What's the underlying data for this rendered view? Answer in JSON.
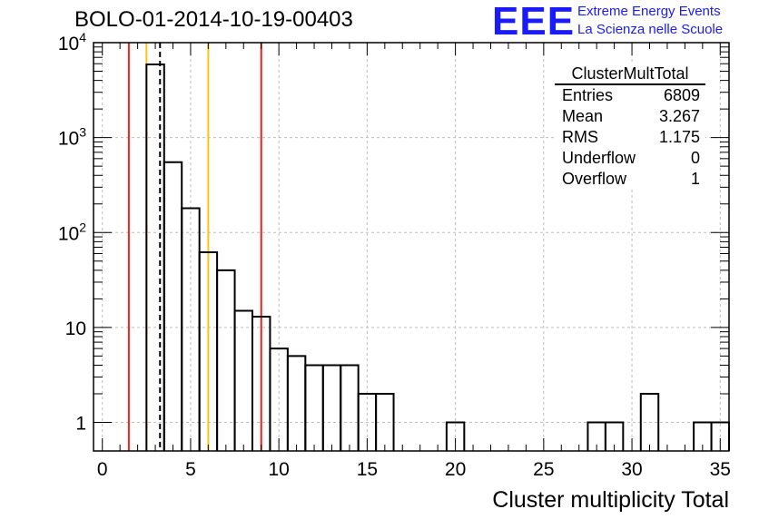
{
  "title": "BOLO-01-2014-10-19-00403",
  "logo": {
    "mark": "EEE",
    "line1": "Extreme Energy Events",
    "line2": "La Scienza nelle Scuole"
  },
  "stats": {
    "title": "ClusterMultTotal",
    "rows": [
      {
        "label": "Entries",
        "value": "6809"
      },
      {
        "label": "Mean",
        "value": "3.267"
      },
      {
        "label": "RMS",
        "value": "1.175"
      },
      {
        "label": "Underflow",
        "value": "0"
      },
      {
        "label": "Overflow",
        "value": "1"
      }
    ]
  },
  "colors": {
    "histogram": "#000000",
    "red_line": "#e8231b",
    "yellow_line": "#f5c518",
    "mean_line": "#000000",
    "grid": "#bdbdbd",
    "logo": "#1a1aff"
  },
  "chart_data": {
    "type": "bar",
    "histogram_style": "step",
    "title": "BOLO-01-2014-10-19-00403",
    "xlabel": "Cluster multiplicity Total",
    "ylabel": "",
    "xlim": [
      -0.5,
      35.5
    ],
    "ylim": [
      0.5,
      10000
    ],
    "yscale": "log",
    "grid": true,
    "bin_edges_start": -0.5,
    "bin_width": 1,
    "counts": [
      0,
      0,
      0,
      5900,
      550,
      180,
      62,
      40,
      15,
      13,
      6,
      5,
      4,
      4,
      4,
      2,
      2,
      0,
      0,
      0,
      1,
      0,
      0,
      0,
      0,
      0,
      0,
      0,
      1,
      1,
      0,
      2,
      0,
      0,
      1,
      1
    ],
    "x_ticks": [
      0,
      5,
      10,
      15,
      20,
      25,
      30,
      35
    ],
    "x_tick_labels": [
      "0",
      "5",
      "10",
      "15",
      "20",
      "25",
      "30",
      "35"
    ],
    "y_ticks": [
      1,
      10,
      100,
      1000,
      10000
    ],
    "y_tick_labels": [
      "1",
      "10",
      "10^2",
      "10^3",
      "10^4"
    ],
    "vertical_lines": [
      {
        "x": 1.5,
        "color": "red",
        "style": "solid"
      },
      {
        "x": 2.5,
        "color": "yellow",
        "style": "solid"
      },
      {
        "x": 3.267,
        "color": "black",
        "style": "dashed"
      },
      {
        "x": 6.0,
        "color": "yellow",
        "style": "solid"
      },
      {
        "x": 9.0,
        "color": "red",
        "style": "solid"
      }
    ]
  }
}
